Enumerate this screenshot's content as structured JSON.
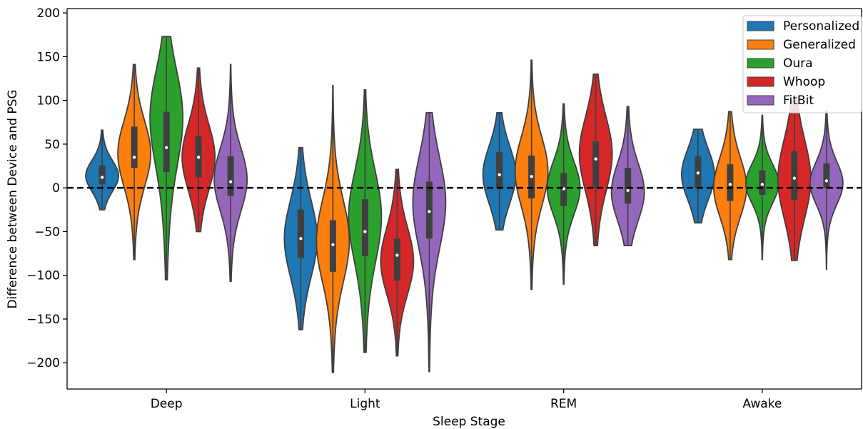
{
  "chart_data": {
    "type": "violin",
    "xlabel": "Sleep Stage",
    "ylabel": "Difference between Device and PSG",
    "categories": [
      "Deep",
      "Light",
      "REM",
      "Awake"
    ],
    "ylim": [
      -230,
      205
    ],
    "yticks": [
      200,
      150,
      100,
      50,
      0,
      -50,
      -100,
      -150,
      -200
    ],
    "ytick_labels": [
      "200",
      "150",
      "100",
      "50",
      "0",
      "−50",
      "−100",
      "−150",
      "−200"
    ],
    "grid": false,
    "legend_position": "top-right",
    "reference_line": {
      "y": 0,
      "style": "dashed"
    },
    "series": [
      {
        "name": "Personalized",
        "color": "#1f77b4",
        "stats": [
          {
            "min": -25,
            "q1": 4,
            "median": 12,
            "q3": 26,
            "max": 66,
            "mode": 14
          },
          {
            "min": -162,
            "q1": -80,
            "median": -58,
            "q3": -25,
            "max": 46,
            "mode": -58
          },
          {
            "min": -48,
            "q1": 0,
            "median": 15,
            "q3": 41,
            "max": 86,
            "mode": 15
          },
          {
            "min": -40,
            "q1": 0,
            "median": 17,
            "q3": 36,
            "max": 67,
            "mode": 15
          }
        ]
      },
      {
        "name": "Generalized",
        "color": "#ff7f0e",
        "stats": [
          {
            "min": -82,
            "q1": 23,
            "median": 35,
            "q3": 70,
            "max": 141,
            "mode": 40
          },
          {
            "min": -211,
            "q1": -96,
            "median": -65,
            "q3": -37,
            "max": 117,
            "mode": -60
          },
          {
            "min": -116,
            "q1": -12,
            "median": 13,
            "q3": 37,
            "max": 146,
            "mode": 20
          },
          {
            "min": -82,
            "q1": -15,
            "median": 4,
            "q3": 27,
            "max": 87,
            "mode": 0
          }
        ]
      },
      {
        "name": "Oura",
        "color": "#2ca02c",
        "stats": [
          {
            "min": -105,
            "q1": 18,
            "median": 46,
            "q3": 87,
            "max": 173,
            "mode": 85
          },
          {
            "min": -188,
            "q1": -78,
            "median": -50,
            "q3": -13,
            "max": 112,
            "mode": -30
          },
          {
            "min": -110,
            "q1": -21,
            "median": -1,
            "q3": 17,
            "max": 96,
            "mode": 0
          },
          {
            "min": -82,
            "q1": -8,
            "median": 4,
            "q3": 20,
            "max": 83,
            "mode": 5
          }
        ]
      },
      {
        "name": "Whoop",
        "color": "#d62728",
        "stats": [
          {
            "min": -50,
            "q1": 12,
            "median": 35,
            "q3": 59,
            "max": 137,
            "mode": 35
          },
          {
            "min": -192,
            "q1": -106,
            "median": -77,
            "q3": -58,
            "max": 21,
            "mode": -85
          },
          {
            "min": -66,
            "q1": 0,
            "median": 33,
            "q3": 53,
            "max": 130,
            "mode": 40
          },
          {
            "min": -83,
            "q1": -14,
            "median": 11,
            "q3": 42,
            "max": 100,
            "mode": 10
          }
        ]
      },
      {
        "name": "FitBit",
        "color": "#9467bd",
        "stats": [
          {
            "min": -107,
            "q1": -9,
            "median": 7,
            "q3": 36,
            "max": 141,
            "mode": 10
          },
          {
            "min": -210,
            "q1": -58,
            "median": -27,
            "q3": 7,
            "max": 86,
            "mode": -15
          },
          {
            "min": -66,
            "q1": -18,
            "median": -3,
            "q3": 23,
            "max": 93,
            "mode": -5
          },
          {
            "min": -93,
            "q1": 0,
            "median": 8,
            "q3": 28,
            "max": 88,
            "mode": 5
          }
        ]
      }
    ]
  }
}
